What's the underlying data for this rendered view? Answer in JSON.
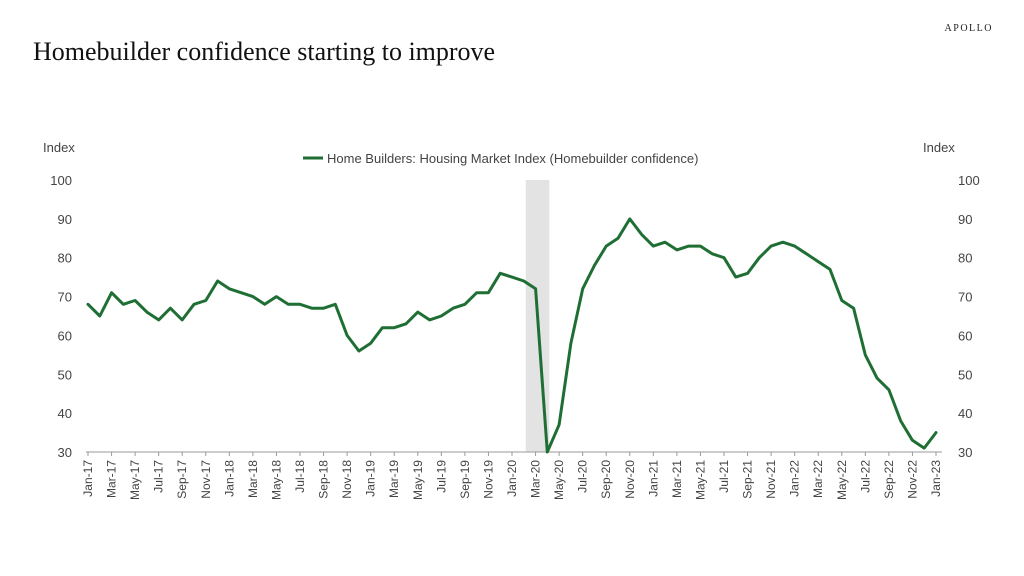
{
  "header": {
    "brand": "APOLLO",
    "title": "Homebuilder confidence starting to improve"
  },
  "chart_data": {
    "type": "line",
    "title": "Homebuilder confidence starting to improve",
    "ylabel_left": "Index",
    "ylabel_right": "Index",
    "ylim": [
      30,
      100
    ],
    "yticks": [
      30,
      40,
      50,
      60,
      70,
      80,
      90,
      100
    ],
    "x_tick_labels": [
      "Jan-17",
      "Mar-17",
      "May-17",
      "Jul-17",
      "Sep-17",
      "Nov-17",
      "Jan-18",
      "Mar-18",
      "May-18",
      "Jul-18",
      "Sep-18",
      "Nov-18",
      "Jan-19",
      "Mar-19",
      "May-19",
      "Jul-19",
      "Sep-19",
      "Nov-19",
      "Jan-20",
      "Mar-20",
      "May-20",
      "Jul-20",
      "Sep-20",
      "Nov-20",
      "Jan-21",
      "Mar-21",
      "May-21",
      "Jul-21",
      "Sep-21",
      "Nov-21",
      "Jan-22",
      "Mar-22",
      "May-22",
      "Jul-22",
      "Sep-22",
      "Nov-22",
      "Jan-23"
    ],
    "recession_shading": {
      "start": "Feb-20",
      "end": "Apr-20",
      "color": "#e3e3e3"
    },
    "grid": false,
    "legend_position": "top-center",
    "series": [
      {
        "name": "Home Builders: Housing Market Index  (Homebuilder confidence)",
        "color": "#1f6f35",
        "x_start": "Jan-17",
        "frequency": "monthly",
        "values": [
          68,
          65,
          71,
          68,
          69,
          66,
          64,
          67,
          64,
          68,
          69,
          74,
          72,
          71,
          70,
          68,
          70,
          68,
          68,
          67,
          67,
          68,
          60,
          56,
          58,
          62,
          62,
          63,
          66,
          64,
          65,
          67,
          68,
          71,
          71,
          76,
          75,
          74,
          72,
          30,
          37,
          58,
          72,
          78,
          83,
          85,
          90,
          86,
          83,
          84,
          82,
          83,
          83,
          81,
          80,
          75,
          76,
          80,
          83,
          84,
          83,
          81,
          79,
          77,
          69,
          67,
          55,
          49,
          46,
          38,
          33,
          31,
          35
        ]
      }
    ]
  }
}
